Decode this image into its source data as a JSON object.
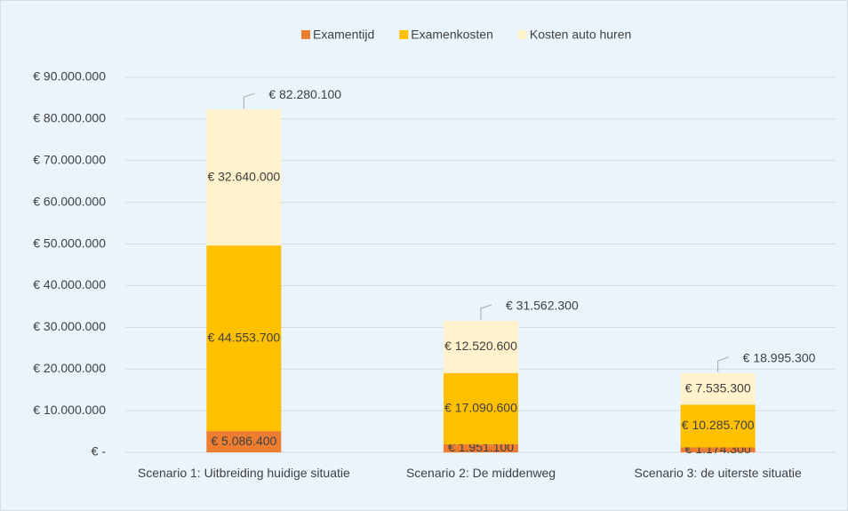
{
  "chart_data": {
    "type": "stacked_bar",
    "categories": [
      "Scenario 1: Uitbreiding huidige situatie",
      "Scenario 2: De middenweg",
      "Scenario 3: de uiterste situatie"
    ],
    "series": [
      {
        "name": "Examentijd",
        "color": "#ED7D31",
        "values": [
          5086400,
          1951100,
          1174300
        ],
        "value_labels": [
          "€ 5.086.400",
          "€ 1.951.100",
          "€ 1.174.300"
        ]
      },
      {
        "name": "Examenkosten",
        "color": "#FFC000",
        "values": [
          44553700,
          17090600,
          10285700
        ],
        "value_labels": [
          "€ 44.553.700",
          "€ 17.090.600",
          "€ 10.285.700"
        ]
      },
      {
        "name": "Kosten auto huren",
        "color": "#FFF2CC",
        "values": [
          32640000,
          12520600,
          7535300
        ],
        "value_labels": [
          "€ 32.640.000",
          "€ 12.520.600",
          "€ 7.535.300"
        ]
      }
    ],
    "totals": {
      "values": [
        82280100,
        31562300,
        18995300
      ],
      "value_labels": [
        "€ 82.280.100",
        "€ 31.562.300",
        "€ 18.995.300"
      ]
    },
    "ylim": [
      0,
      90000000
    ],
    "yticks": [
      {
        "value": 0,
        "label": "€ -"
      },
      {
        "value": 10000000,
        "label": "€ 10.000.000"
      },
      {
        "value": 20000000,
        "label": "€ 20.000.000"
      },
      {
        "value": 30000000,
        "label": "€ 30.000.000"
      },
      {
        "value": 40000000,
        "label": "€ 40.000.000"
      },
      {
        "value": 50000000,
        "label": "€ 50.000.000"
      },
      {
        "value": 60000000,
        "label": "€ 60.000.000"
      },
      {
        "value": 70000000,
        "label": "€ 70.000.000"
      },
      {
        "value": 80000000,
        "label": "€ 80.000.000"
      },
      {
        "value": 90000000,
        "label": "€ 90.000.000"
      }
    ],
    "grid": true,
    "legend": "top"
  }
}
